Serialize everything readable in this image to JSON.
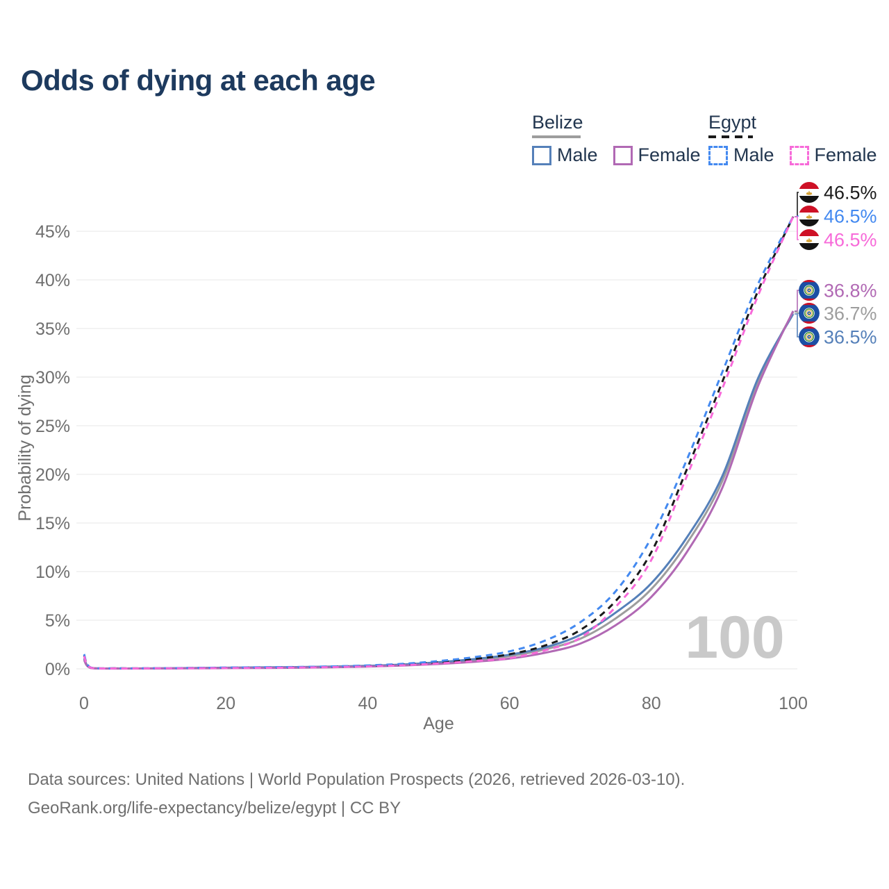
{
  "title": "Odds of dying at each age",
  "legend": {
    "belize": {
      "label": "Belize",
      "male": "Male",
      "female": "Female"
    },
    "egypt": {
      "label": "Egypt",
      "male": "Male",
      "female": "Female"
    }
  },
  "watermark": "100",
  "footer": {
    "line1": "Data sources: United Nations | World Population Prospects (2026, retrieved 2026-03-10).",
    "line2": "GeoRank.org/life-expectancy/belize/egypt | CC BY"
  },
  "colors": {
    "title_text": "#1d3a5e",
    "legend_text": "#22364f",
    "axis_text": "#6f6f6f",
    "grid": "#ececec",
    "watermark": "#c9c9c9",
    "belize_male": "#5580b9",
    "belize_female": "#b169b4",
    "belize_both": "#9d9d9d",
    "egypt_male": "#4389f0",
    "egypt_female": "#f76ad9",
    "egypt_both": "#1a1a1a",
    "flag_red": "#ce1126",
    "flag_black": "#141414",
    "flag_gold": "#d4a032",
    "flag_blue": "#1b4fa4",
    "flag_green": "#3a8f3a"
  },
  "chart_data": {
    "type": "line",
    "title": "Odds of dying at each age",
    "xlabel": "Age",
    "ylabel": "Probability of dying",
    "xlim": [
      0,
      100
    ],
    "ylim_percent": [
      0,
      47
    ],
    "x_ticks": [
      0,
      20,
      40,
      60,
      80,
      100
    ],
    "y_ticks_percent": [
      0,
      5,
      10,
      15,
      20,
      25,
      30,
      35,
      40,
      45
    ],
    "grid": true,
    "legend_position": "top-right",
    "ages": [
      0,
      1,
      5,
      10,
      15,
      20,
      25,
      30,
      35,
      40,
      45,
      50,
      55,
      60,
      65,
      70,
      75,
      80,
      85,
      90,
      95,
      100
    ],
    "series": [
      {
        "id": "belize-both",
        "country": "Belize",
        "sex": "both",
        "style": "solid",
        "color_key": "belize_both",
        "end_label": "36.7%",
        "values_percent": [
          1.0,
          0.08,
          0.04,
          0.04,
          0.07,
          0.1,
          0.13,
          0.15,
          0.2,
          0.27,
          0.4,
          0.6,
          0.9,
          1.3,
          2.0,
          3.1,
          5.2,
          8.2,
          12.9,
          19.3,
          29.5,
          36.7
        ]
      },
      {
        "id": "belize-male",
        "country": "Belize",
        "sex": "male",
        "style": "solid",
        "color_key": "belize_male",
        "end_label": "36.5%",
        "values_percent": [
          1.1,
          0.09,
          0.04,
          0.05,
          0.08,
          0.12,
          0.15,
          0.18,
          0.23,
          0.31,
          0.45,
          0.68,
          1.0,
          1.45,
          2.2,
          3.5,
          5.8,
          8.8,
          13.5,
          19.8,
          29.8,
          36.5
        ]
      },
      {
        "id": "belize-female",
        "country": "Belize",
        "sex": "female",
        "style": "solid",
        "color_key": "belize_female",
        "end_label": "36.8%",
        "values_percent": [
          0.9,
          0.08,
          0.03,
          0.04,
          0.05,
          0.07,
          0.09,
          0.12,
          0.16,
          0.23,
          0.34,
          0.5,
          0.72,
          1.05,
          1.65,
          2.6,
          4.5,
          7.4,
          12.0,
          18.6,
          29.0,
          36.8
        ]
      },
      {
        "id": "egypt-both",
        "country": "Egypt",
        "sex": "both",
        "style": "dashed",
        "color_key": "egypt_both",
        "end_label": "46.5%",
        "values_percent": [
          1.4,
          0.11,
          0.05,
          0.05,
          0.08,
          0.11,
          0.13,
          0.16,
          0.21,
          0.3,
          0.44,
          0.67,
          1.0,
          1.5,
          2.4,
          4.0,
          7.0,
          12.0,
          20.5,
          29.5,
          38.8,
          46.5
        ]
      },
      {
        "id": "egypt-male",
        "country": "Egypt",
        "sex": "male",
        "style": "dashed",
        "color_key": "egypt_male",
        "end_label": "46.5%",
        "values_percent": [
          1.5,
          0.12,
          0.05,
          0.06,
          0.09,
          0.13,
          0.16,
          0.19,
          0.25,
          0.35,
          0.52,
          0.8,
          1.2,
          1.8,
          2.9,
          4.8,
          8.0,
          13.5,
          21.5,
          30.5,
          39.5,
          46.5
        ]
      },
      {
        "id": "egypt-female",
        "country": "Egypt",
        "sex": "female",
        "style": "dashed",
        "color_key": "egypt_female",
        "end_label": "46.5%",
        "values_percent": [
          1.3,
          0.1,
          0.04,
          0.05,
          0.06,
          0.08,
          0.1,
          0.13,
          0.18,
          0.25,
          0.37,
          0.55,
          0.8,
          1.1,
          1.9,
          3.2,
          6.4,
          11.2,
          19.8,
          28.8,
          38.3,
          46.5
        ]
      }
    ],
    "end_labels": [
      {
        "series": "egypt-both",
        "flag": "egypt",
        "text": "46.5%"
      },
      {
        "series": "egypt-male",
        "flag": "egypt",
        "text": "46.5%"
      },
      {
        "series": "egypt-female",
        "flag": "egypt",
        "text": "46.5%"
      },
      {
        "series": "belize-female",
        "flag": "belize",
        "text": "36.8%"
      },
      {
        "series": "belize-both",
        "flag": "belize",
        "text": "36.7%"
      },
      {
        "series": "belize-male",
        "flag": "belize",
        "text": "36.5%"
      }
    ]
  }
}
